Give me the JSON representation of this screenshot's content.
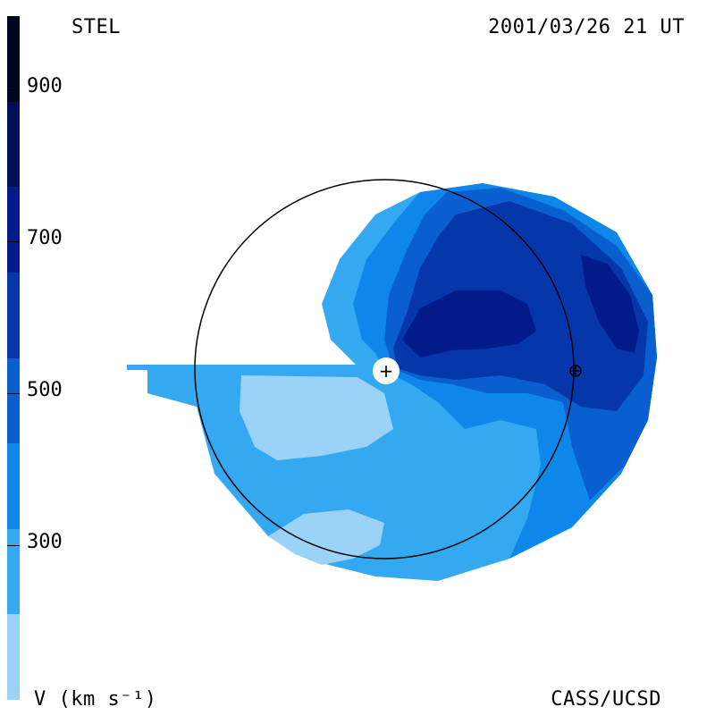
{
  "header": {
    "observatory": "STEL",
    "timestamp": "2001/03/26 21 UT"
  },
  "footer": {
    "credit": "CASS/UCSD",
    "unit_label": "V (km s⁻¹)"
  },
  "colorbar": {
    "bands": [
      {
        "color": "#9bd3f7"
      },
      {
        "color": "#35a8f2"
      },
      {
        "color": "#0f86ea"
      },
      {
        "color": "#0a5fd0"
      },
      {
        "color": "#0536aa"
      },
      {
        "color": "#021a8a"
      },
      {
        "color": "#010d55"
      },
      {
        "color": "#00051f"
      }
    ],
    "ticks": [
      {
        "label": "900"
      },
      {
        "label": "700"
      },
      {
        "label": "500"
      },
      {
        "label": "300"
      }
    ]
  },
  "map": {
    "center_symbol": "+",
    "earth_symbol": "earth-symbol",
    "colors": {
      "lowest": "#9bd3f7",
      "low": "#35a8f2",
      "mid": "#0f86ea",
      "midhigh": "#0a5fd0",
      "high": "#0536aa",
      "highest": "#021a8a"
    }
  }
}
